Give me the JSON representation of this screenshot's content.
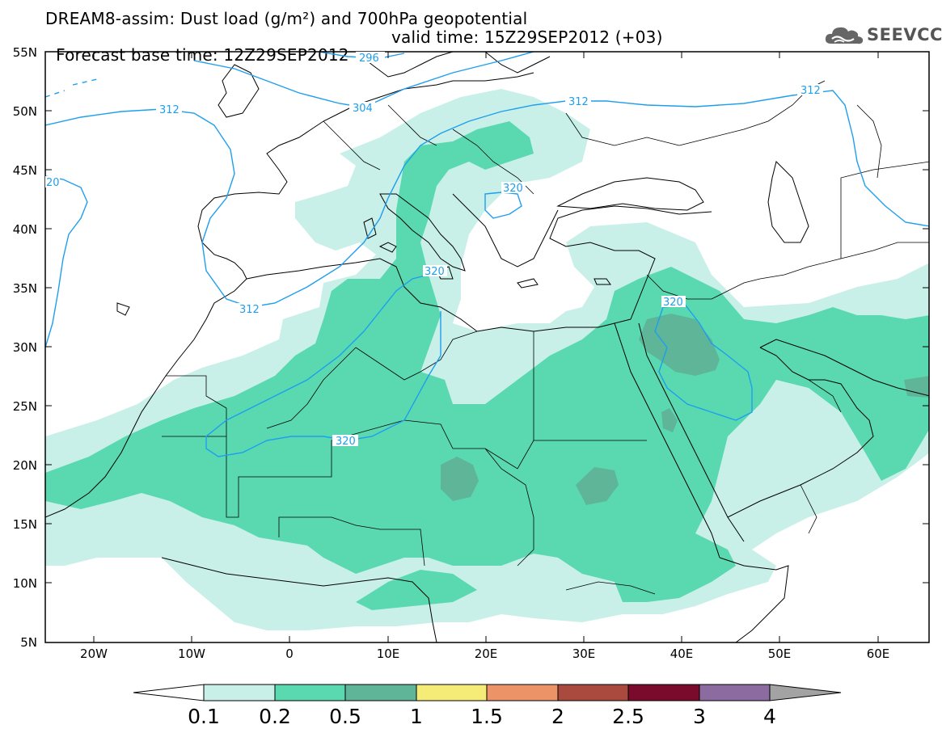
{
  "header": {
    "line1": "DREAM8-assim: Dust load (g/m²) and 700hPa geopotential",
    "line2_base": "Forecast base time: 12Z29SEP2012",
    "line2_valid": "valid time: 15Z29SEP2012 (+03)"
  },
  "logo": {
    "text": "SEEVCCC",
    "icon": "cloud-icon"
  },
  "map": {
    "lat_labels": [
      "55N",
      "50N",
      "45N",
      "40N",
      "35N",
      "30N",
      "25N",
      "20N",
      "15N",
      "10N",
      "5N"
    ],
    "lon_labels": [
      "20W",
      "10W",
      "0",
      "10E",
      "20E",
      "30E",
      "40E",
      "50E",
      "60E"
    ],
    "extent": {
      "lon": [
        -25,
        65
      ],
      "lat": [
        5,
        55
      ]
    },
    "contour_labels": [
      "296",
      "304",
      "312",
      "312",
      "312",
      "320",
      "320",
      "320",
      "320",
      "20"
    ]
  },
  "colorbar": {
    "labels": [
      "0.1",
      "0.2",
      "0.5",
      "1",
      "1.5",
      "2",
      "2.5",
      "3",
      "4"
    ],
    "colors": [
      "#ffffff",
      "#c8f0e8",
      "#5ad9b0",
      "#5eb597",
      "#f5ec78",
      "#ec9368",
      "#aa4a3e",
      "#7b0b2c",
      "#8c6ba1",
      "#a3a3a3"
    ]
  },
  "colors": {
    "contour": "#1f9eee",
    "coast": "#000000"
  }
}
